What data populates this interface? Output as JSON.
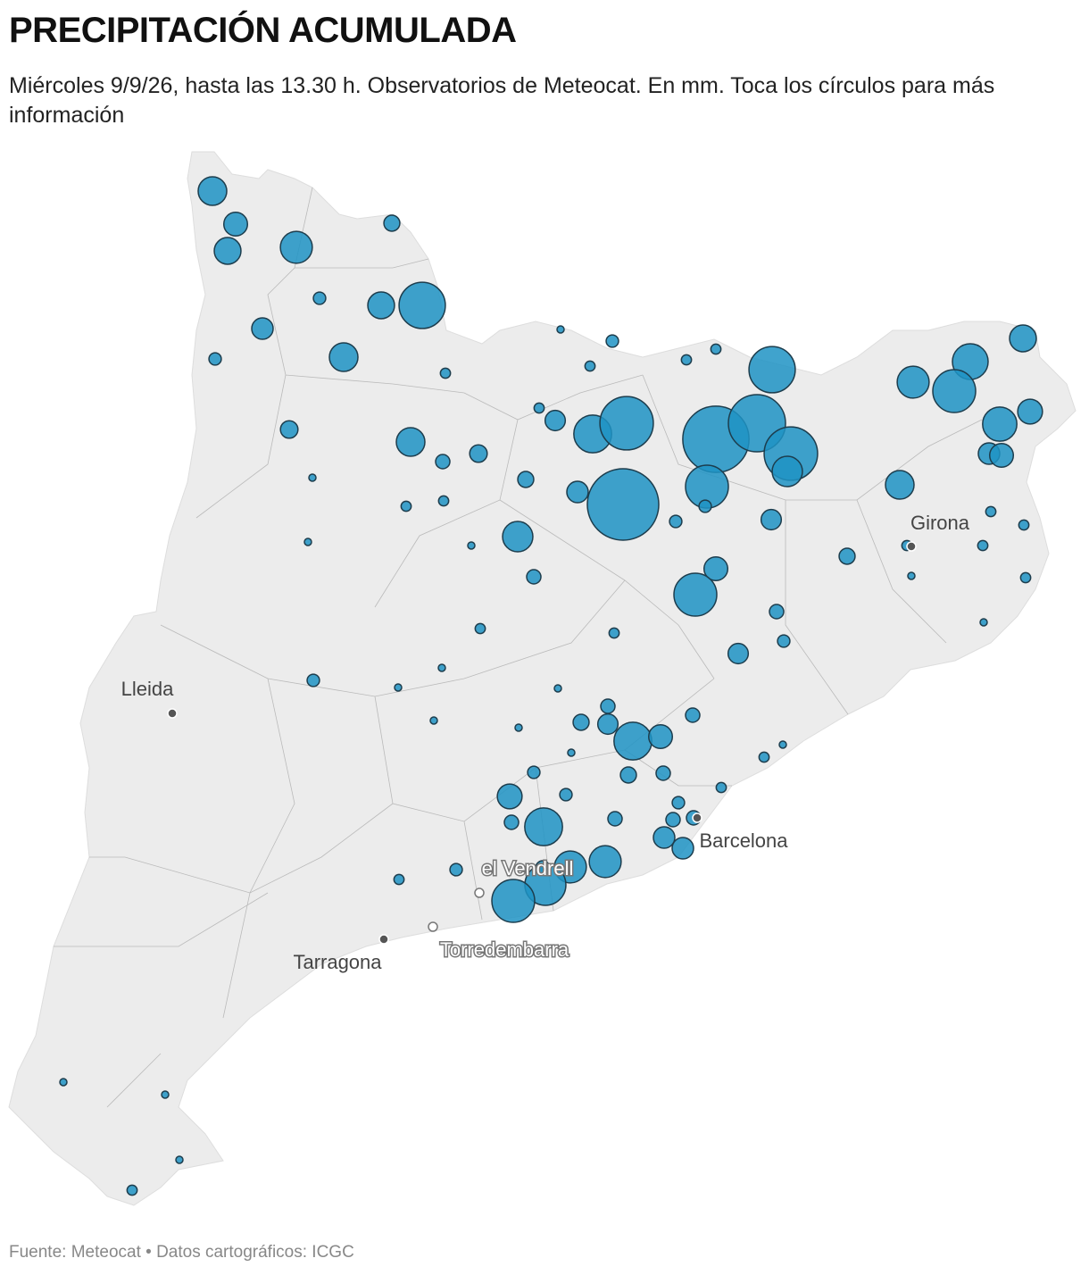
{
  "header": {
    "title": "PRECIPITACIÓN ACUMULADA",
    "subtitle": "Miércoles 9/9/26, hasta las 13.30 h. Observatorios de Meteocat. En mm. Toca los círculos para más información"
  },
  "map": {
    "type": "bubble-map",
    "color": "#1f93c4",
    "cities": [
      {
        "name": "Girona"
      },
      {
        "name": "Lleida"
      },
      {
        "name": "Barcelona"
      },
      {
        "name": "Tarragona"
      },
      {
        "name": "el Vendrell"
      },
      {
        "name": "Torredembarra"
      }
    ],
    "values": [
      16,
      11,
      14,
      20,
      5,
      3,
      14,
      42,
      9,
      3,
      16,
      2,
      1,
      3,
      2,
      2,
      2,
      42,
      14,
      25,
      20,
      36,
      23,
      12,
      9,
      11,
      6,
      16,
      4,
      6,
      2,
      8,
      28,
      56,
      86,
      64,
      56,
      18,
      36,
      100,
      9,
      5,
      1,
      2,
      2,
      1,
      1,
      18,
      4,
      3,
      3,
      8,
      16,
      2,
      2,
      5,
      2,
      2,
      1,
      2,
      11,
      36,
      4,
      3,
      8,
      1,
      2,
      2,
      1,
      3,
      1,
      1,
      1,
      1,
      4,
      5,
      8,
      28,
      11,
      4,
      1,
      2,
      1,
      5,
      4,
      2,
      3,
      12,
      3,
      4,
      28,
      4,
      3,
      4,
      4,
      9,
      9,
      20,
      20,
      4,
      33,
      36,
      3,
      2,
      1,
      1,
      1,
      2
    ]
  },
  "footer": {
    "source": "Fuente: Meteocat • Datos cartográficos: ICGC"
  }
}
